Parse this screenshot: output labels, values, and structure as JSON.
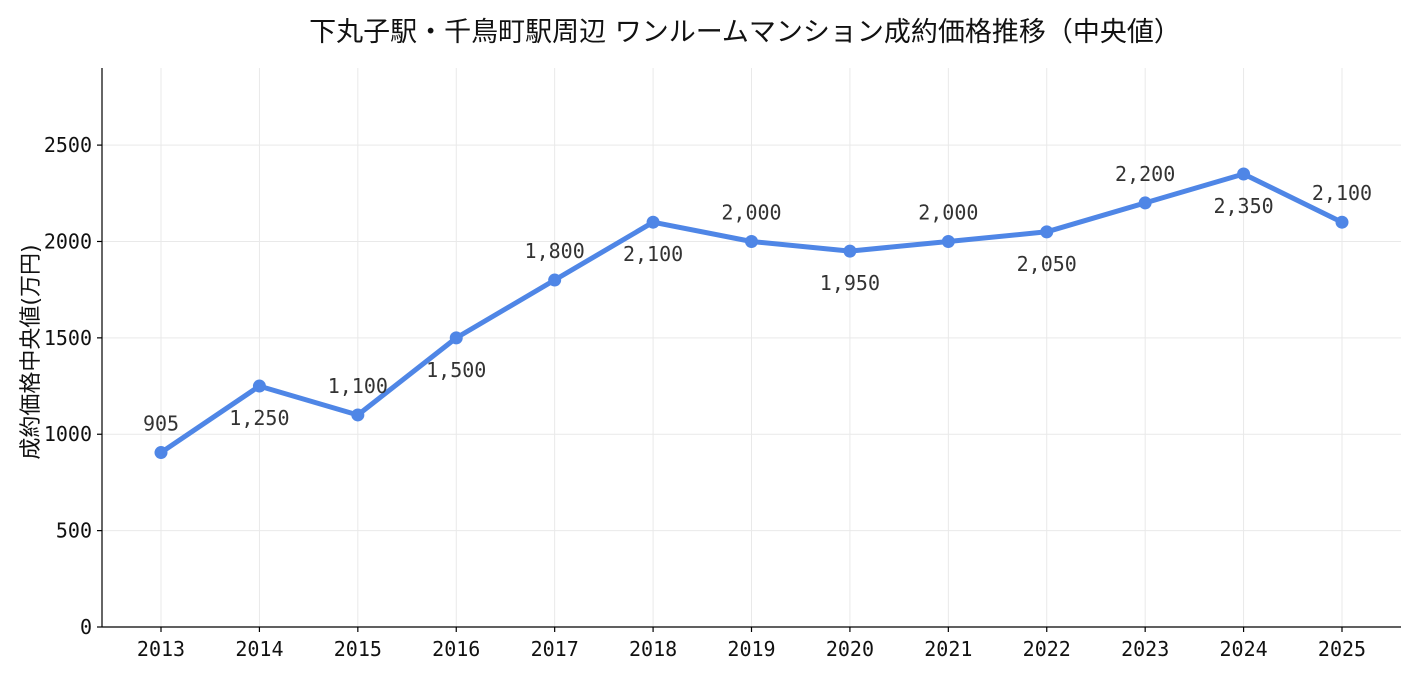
{
  "chart_data": {
    "type": "line",
    "title": "下丸子駅・千鳥町駅周辺 ワンルームマンション成約価格推移（中央値）",
    "xlabel": "",
    "ylabel": "成約価格中央値(万円)",
    "x": [
      "2013",
      "2014",
      "2015",
      "2016",
      "2017",
      "2018",
      "2019",
      "2020",
      "2021",
      "2022",
      "2023",
      "2024",
      "2025"
    ],
    "series": [
      {
        "values": [
          905,
          1250,
          1100,
          1500,
          1800,
          2100,
          2000,
          1950,
          2000,
          2050,
          2200,
          2350,
          2100
        ],
        "labels": [
          "905",
          "1,250",
          "1,100",
          "1,500",
          "1,800",
          "2,100",
          "2,000",
          "1,950",
          "2,000",
          "2,050",
          "2,200",
          "2,350",
          "2,100"
        ],
        "label_position": [
          "above",
          "below",
          "above",
          "below",
          "above",
          "below",
          "above",
          "below",
          "above",
          "below",
          "above",
          "below",
          "above"
        ],
        "color": "#4f86e6"
      }
    ],
    "ylim": [
      0,
      2900
    ],
    "yticks": [
      "0",
      "500",
      "1000",
      "1500",
      "2000",
      "2500"
    ],
    "grid": true,
    "legend": "none"
  }
}
